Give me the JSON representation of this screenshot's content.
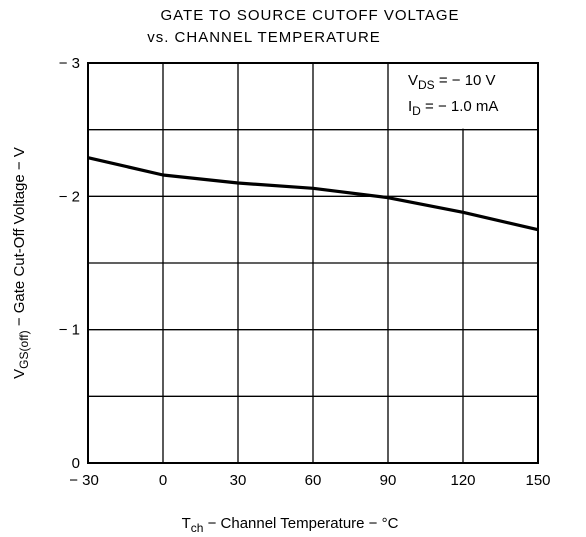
{
  "chart_data": {
    "type": "line",
    "title": [
      "GATE TO SOURCE CUTOFF VOLTAGE",
      "vs. CHANNEL TEMPERATURE"
    ],
    "x_label": {
      "symbol": "T",
      "subscript": "ch",
      "text": " − Channel Temperature − °C"
    },
    "y_label": {
      "symbol": "V",
      "subscript": "GS(off)",
      "text": " − Gate Cut-Off Voltage − V"
    },
    "annotations": [
      {
        "symbol": "V",
        "subscript": "DS",
        "text": " = − 10 V"
      },
      {
        "symbol": "I",
        "subscript": "D",
        "text": " = − 1.0 mA"
      }
    ],
    "x": [
      -30,
      0,
      30,
      60,
      90,
      120,
      150
    ],
    "series": [
      {
        "name": "VGS(off)",
        "color": "#000000",
        "values": [
          -2.29,
          -2.16,
          -2.1,
          -2.06,
          -1.99,
          -1.88,
          -1.75
        ]
      }
    ],
    "xlim": [
      -30,
      150
    ],
    "xticks": [
      {
        "value": -30,
        "label": "− 30"
      },
      0,
      30,
      60,
      90,
      120,
      150
    ],
    "ylim": [
      0,
      -3
    ],
    "yticks": [
      0,
      {
        "value": -1,
        "label": "− 1"
      },
      {
        "value": -2,
        "label": "− 2"
      },
      {
        "value": -3,
        "label": "− 3"
      }
    ],
    "minor_yticks": [
      -0.5,
      -1.5,
      -2.5
    ],
    "grid": true
  }
}
